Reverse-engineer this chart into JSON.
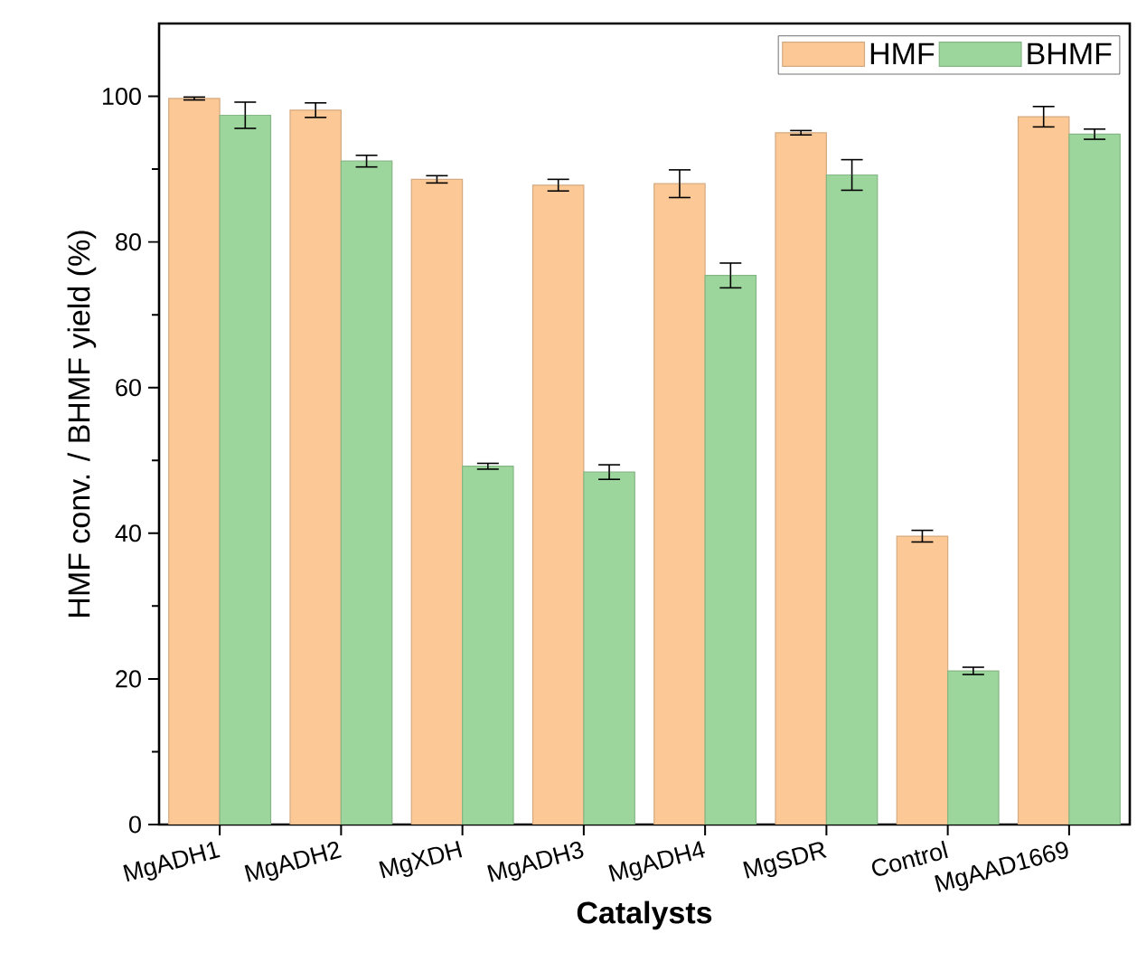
{
  "chart_data": {
    "type": "bar",
    "xlabel": "Catalysts",
    "ylabel": "HMF conv. / BHMF yield (%)",
    "categories": [
      "MgADH1",
      "MgADH2",
      "MgXDH",
      "MgADH3",
      "MgADH4",
      "MgSDR",
      "Control",
      "MgAAD1669"
    ],
    "series": [
      {
        "name": "HMF",
        "color": "#fbc896",
        "values": [
          99.7,
          98.1,
          88.6,
          87.8,
          88.0,
          95.0,
          39.6,
          97.2
        ],
        "errors": [
          0.2,
          1.0,
          0.5,
          0.8,
          1.9,
          0.3,
          0.8,
          1.4
        ]
      },
      {
        "name": "BHMF",
        "color": "#9dd69c",
        "values": [
          97.4,
          91.1,
          49.2,
          48.4,
          75.4,
          89.2,
          21.1,
          94.8
        ],
        "errors": [
          1.8,
          0.8,
          0.4,
          1.0,
          1.7,
          2.1,
          0.5,
          0.7
        ]
      }
    ],
    "ylim": [
      0,
      110
    ],
    "yticks": [
      0,
      20,
      40,
      60,
      80,
      100
    ],
    "grid": false,
    "legend": "top right"
  }
}
